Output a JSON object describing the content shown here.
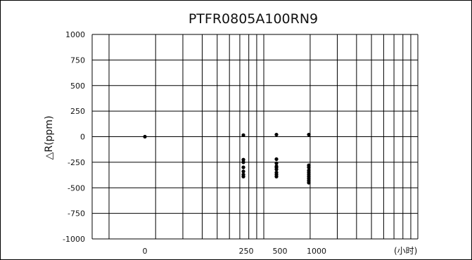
{
  "chart_data": {
    "type": "scatter",
    "title": "PTFR0805A100RN9",
    "ylabel": "△R(ppm)",
    "xunit": "(小时)",
    "x_tick_labels": [
      "0",
      "250",
      "500",
      "1000"
    ],
    "y_tick_labels": [
      "1000",
      "750",
      "500",
      "250",
      "0",
      "-250",
      "-500",
      "-750",
      "-1000"
    ],
    "ylim": [
      -1000,
      1000
    ],
    "yticks": [
      1000,
      750,
      500,
      250,
      0,
      -250,
      -500,
      -750,
      -1000
    ],
    "xlim": [
      0,
      1000
    ],
    "grid": true,
    "series": [
      {
        "x": [
          0,
          250,
          250,
          250,
          250,
          250,
          250,
          250,
          500,
          500,
          500,
          500,
          500,
          500,
          500,
          500,
          500,
          1000,
          1000,
          1000,
          1000,
          1000,
          1000,
          1000,
          1000,
          1000,
          1000
        ],
        "y": [
          0,
          15,
          -225,
          -250,
          -300,
          -340,
          -370,
          -390,
          20,
          -220,
          -260,
          -290,
          -300,
          -320,
          -350,
          -370,
          -390,
          20,
          -280,
          -300,
          -330,
          -350,
          -370,
          -390,
          -410,
          -430,
          -450
        ]
      }
    ]
  }
}
